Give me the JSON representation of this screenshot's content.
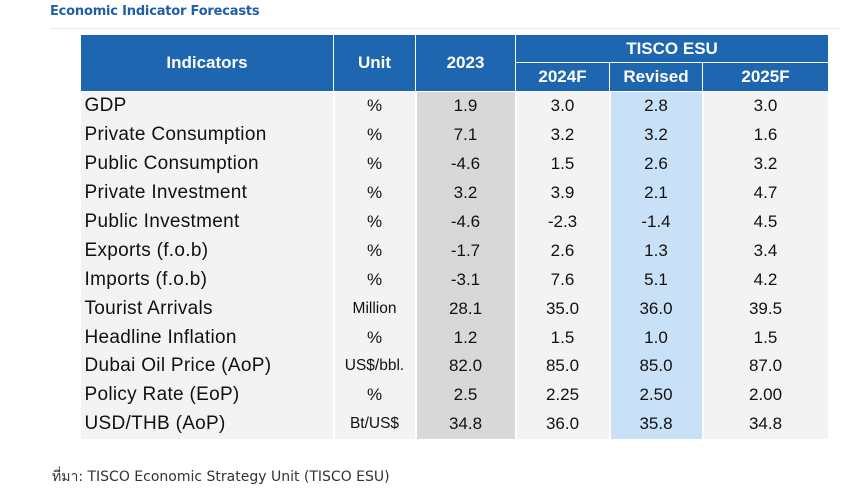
{
  "title": "Economic Indicator Forecasts",
  "header": {
    "indicators": "Indicators",
    "unit": "Unit",
    "y2023": "2023",
    "group": "TISCO ESU",
    "y2024f": "2024F",
    "revised": "Revised",
    "y2025f": "2025F"
  },
  "rows": [
    {
      "name": "GDP",
      "unit": "%",
      "y2023": "1.9",
      "y2024f": "3.0",
      "revised": "2.8",
      "y2025f": "3.0"
    },
    {
      "name": "Private Consumption",
      "unit": "%",
      "y2023": "7.1",
      "y2024f": "3.2",
      "revised": "3.2",
      "y2025f": "1.6"
    },
    {
      "name": "Public Consumption",
      "unit": "%",
      "y2023": "-4.6",
      "y2024f": "1.5",
      "revised": "2.6",
      "y2025f": "3.2"
    },
    {
      "name": "Private Investment",
      "unit": "%",
      "y2023": "3.2",
      "y2024f": "3.9",
      "revised": "2.1",
      "y2025f": "4.7"
    },
    {
      "name": "Public Investment",
      "unit": "%",
      "y2023": "-4.6",
      "y2024f": "-2.3",
      "revised": "-1.4",
      "y2025f": "4.5"
    },
    {
      "name": "Exports (f.o.b)",
      "unit": "%",
      "y2023": "-1.7",
      "y2024f": "2.6",
      "revised": "1.3",
      "y2025f": "3.4"
    },
    {
      "name": "Imports (f.o.b)",
      "unit": "%",
      "y2023": "-3.1",
      "y2024f": "7.6",
      "revised": "5.1",
      "y2025f": "4.2"
    },
    {
      "name": "Tourist Arrivals",
      "unit": "Million",
      "y2023": "28.1",
      "y2024f": "35.0",
      "revised": "36.0",
      "y2025f": "39.5"
    },
    {
      "name": "Headline Inflation",
      "unit": "%",
      "y2023": "1.2",
      "y2024f": "1.5",
      "revised": "1.0",
      "y2025f": "1.5"
    },
    {
      "name": "Dubai Oil Price (AoP)",
      "unit": "US$/bbl.",
      "y2023": "82.0",
      "y2024f": "85.0",
      "revised": "85.0",
      "y2025f": "87.0"
    },
    {
      "name": "Policy Rate (EoP)",
      "unit": "%",
      "y2023": "2.5",
      "y2024f": "2.25",
      "revised": "2.50",
      "y2025f": "2.00"
    },
    {
      "name": "USD/THB (AoP)",
      "unit": "Bt/US$",
      "y2023": "34.8",
      "y2024f": "36.0",
      "revised": "35.8",
      "y2025f": "34.8"
    }
  ],
  "source": "ที่มา: TISCO Economic Strategy Unit (TISCO ESU)",
  "colors": {
    "header_bg": "#1f66b1",
    "title": "#1f5ea8",
    "col_2023_bg": "#d8d8d8",
    "col_revised_bg": "#c9e1f6",
    "row_bg": "#f3f3f3"
  }
}
